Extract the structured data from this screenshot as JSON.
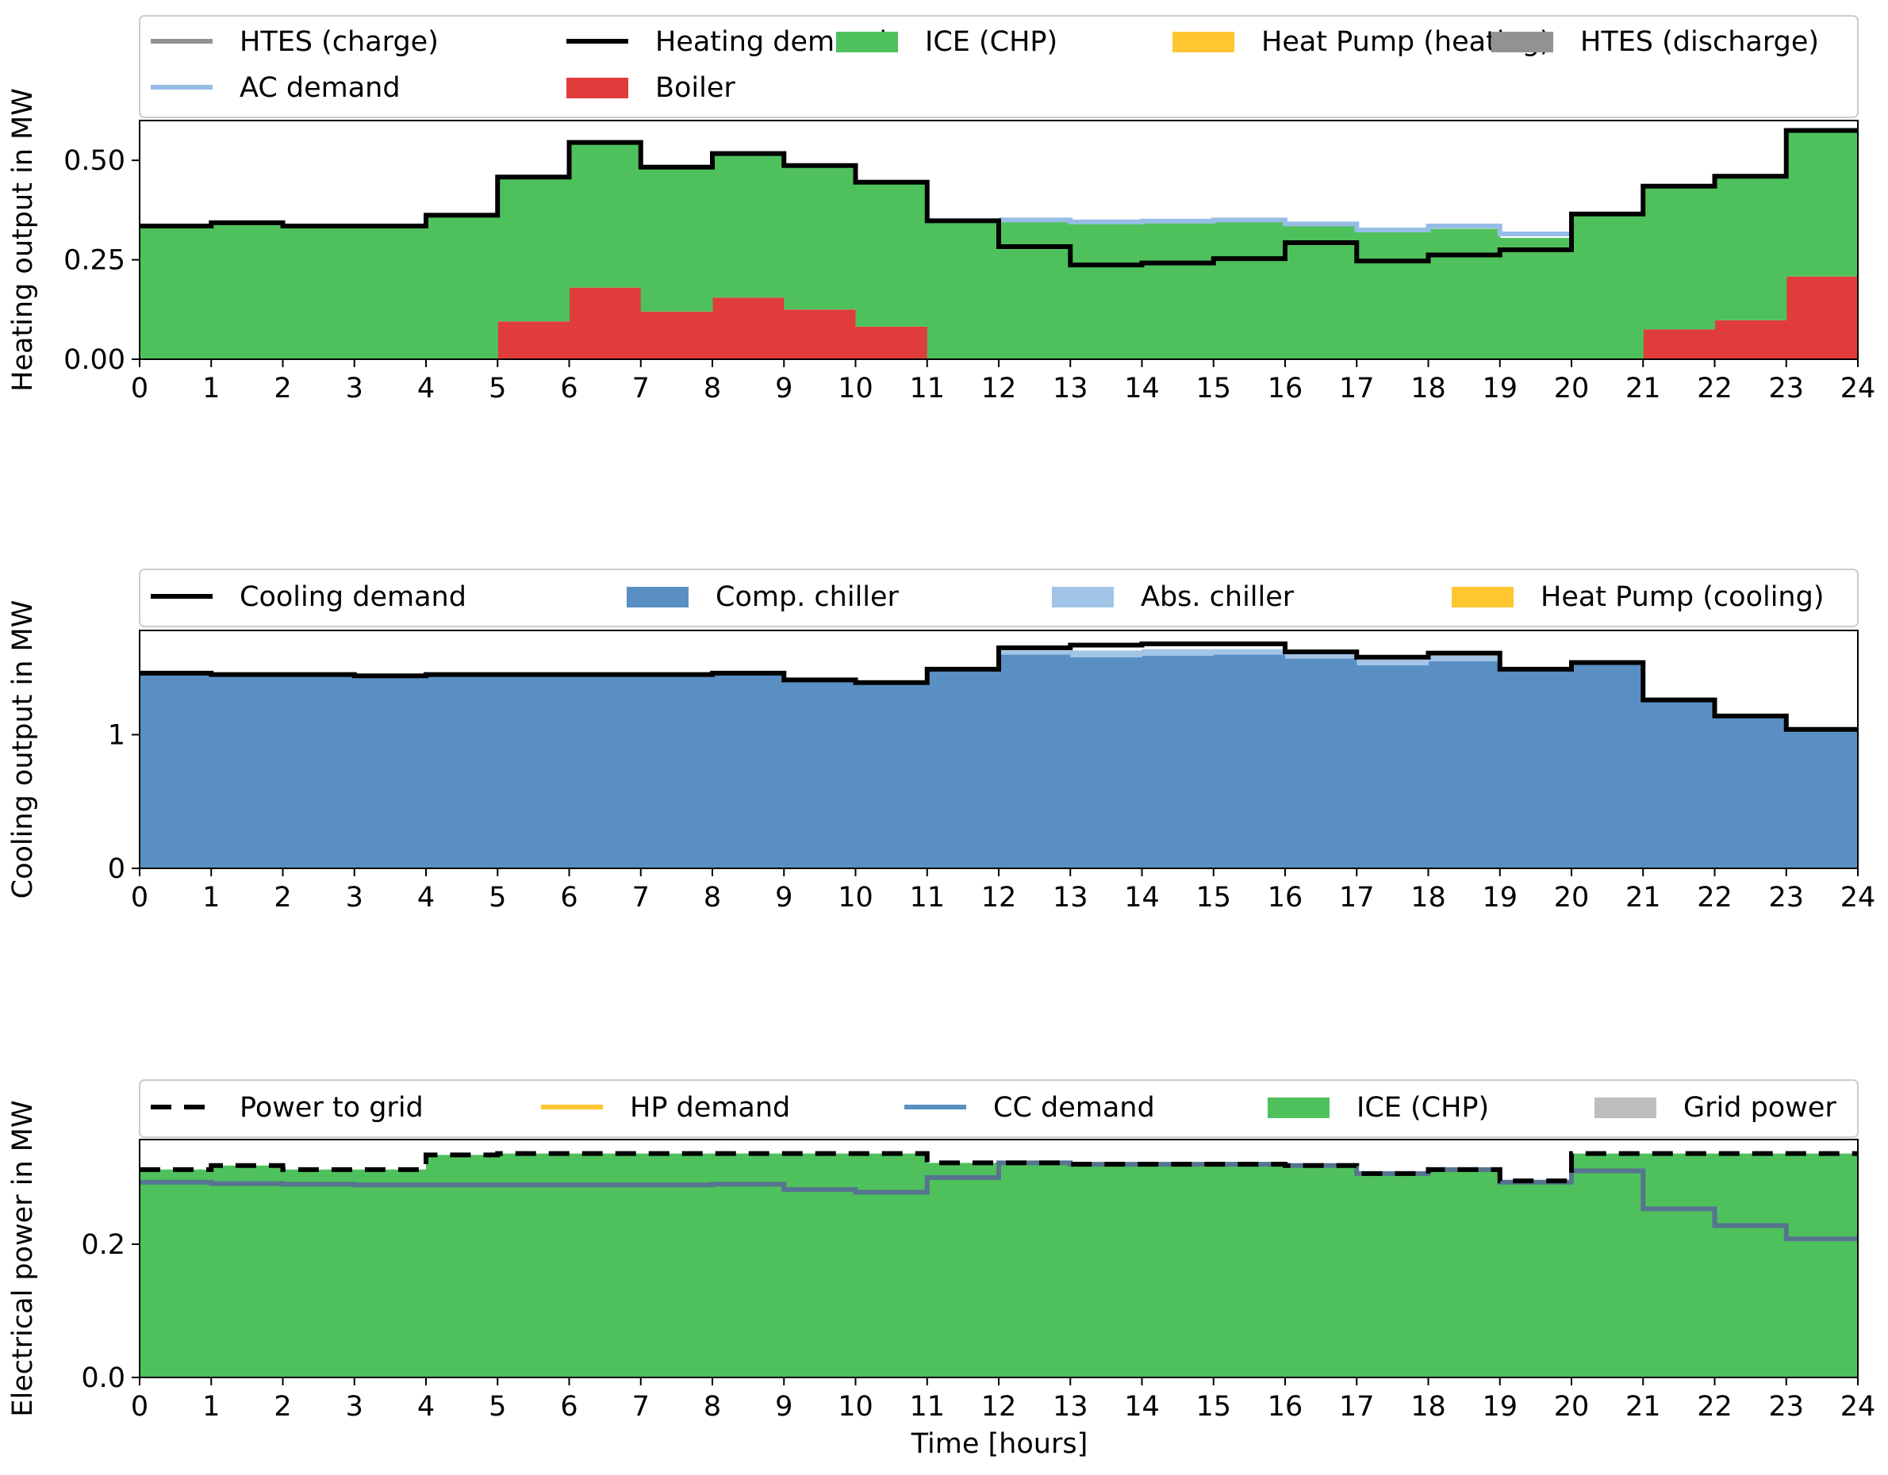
{
  "figure": {
    "xlabel": "Time [hours]"
  },
  "chart_data": [
    {
      "type": "area",
      "step": "post",
      "ylabel": "Heating output in MW",
      "xlim": [
        0,
        24
      ],
      "ylim": [
        0,
        0.6
      ],
      "x": [
        0,
        1,
        2,
        3,
        4,
        5,
        6,
        7,
        8,
        9,
        10,
        11,
        12,
        13,
        14,
        15,
        16,
        17,
        18,
        19,
        20,
        21,
        22,
        23,
        24
      ],
      "xticks": [
        0,
        1,
        2,
        3,
        4,
        5,
        6,
        7,
        8,
        9,
        10,
        11,
        12,
        13,
        14,
        15,
        16,
        17,
        18,
        19,
        20,
        21,
        22,
        23,
        24
      ],
      "yticks": [
        0,
        0.25,
        0.5
      ],
      "ytick_labels": [
        "0.00",
        "0.25",
        "0.50"
      ],
      "legend": {
        "placement": "top",
        "ncol": 5,
        "entries": [
          {
            "label": "HTES (charge)",
            "kind": "line",
            "color": "#929292"
          },
          {
            "label": "Heating demand",
            "kind": "line",
            "color": "#000000"
          },
          {
            "label": "ICE (CHP)",
            "kind": "patch",
            "color": "#4fc15c"
          },
          {
            "label": "Heat Pump (heating)",
            "kind": "patch",
            "color": "#ffc631"
          },
          {
            "label": "HTES (discharge)",
            "kind": "patch",
            "color": "#929292"
          },
          {
            "label": "AC demand",
            "kind": "line",
            "color": "#97bde6"
          },
          {
            "label": "Boiler",
            "kind": "patch",
            "color": "#e03c3c"
          }
        ]
      },
      "areas": [
        {
          "name": "Boiler",
          "color": "#e03c3c",
          "base": null,
          "values": [
            0,
            0,
            0,
            0,
            0,
            0.095,
            0.18,
            0.12,
            0.155,
            0.125,
            0.082,
            0,
            0,
            0,
            0,
            0,
            0,
            0,
            0,
            0,
            0,
            0.075,
            0.098,
            0.208
          ]
        },
        {
          "name": "ICE (CHP)",
          "color": "#4fc15c",
          "base": "Boiler",
          "values": [
            0.335,
            0.343,
            0.335,
            0.335,
            0.362,
            0.363,
            0.365,
            0.363,
            0.362,
            0.362,
            0.363,
            0.348,
            0.35,
            0.345,
            0.347,
            0.35,
            0.34,
            0.325,
            0.328,
            0.305,
            0.365,
            0.36,
            0.362,
            0.367
          ]
        }
      ],
      "lines": [
        {
          "name": "AC demand",
          "color": "#97bde6",
          "width": 6,
          "dash": null,
          "values": [
            null,
            null,
            null,
            null,
            null,
            null,
            null,
            null,
            null,
            null,
            null,
            null,
            0.35,
            0.345,
            0.347,
            0.35,
            0.34,
            0.325,
            0.335,
            0.315,
            null,
            null,
            null,
            null
          ]
        },
        {
          "name": "Heating demand",
          "color": "#000000",
          "width": 6,
          "dash": null,
          "values": [
            0.335,
            0.343,
            0.335,
            0.335,
            0.362,
            0.458,
            0.545,
            0.483,
            0.517,
            0.487,
            0.445,
            0.348,
            0.283,
            0.237,
            0.242,
            0.253,
            0.293,
            0.247,
            0.262,
            0.275,
            0.365,
            0.435,
            0.46,
            0.575
          ]
        }
      ]
    },
    {
      "type": "area",
      "step": "post",
      "ylabel": "Cooling output in MW",
      "xlim": [
        0,
        24
      ],
      "ylim": [
        0,
        1.78
      ],
      "x": [
        0,
        1,
        2,
        3,
        4,
        5,
        6,
        7,
        8,
        9,
        10,
        11,
        12,
        13,
        14,
        15,
        16,
        17,
        18,
        19,
        20,
        21,
        22,
        23,
        24
      ],
      "xticks": [
        0,
        1,
        2,
        3,
        4,
        5,
        6,
        7,
        8,
        9,
        10,
        11,
        12,
        13,
        14,
        15,
        16,
        17,
        18,
        19,
        20,
        21,
        22,
        23,
        24
      ],
      "yticks": [
        0,
        1
      ],
      "ytick_labels": [
        "0",
        "1"
      ],
      "legend": {
        "placement": "top",
        "ncol": 4,
        "entries": [
          {
            "label": "Cooling demand",
            "kind": "line",
            "color": "#000000"
          },
          {
            "label": "Comp. chiller",
            "kind": "patch",
            "color": "#5a8fc3"
          },
          {
            "label": "Abs. chiller",
            "kind": "patch",
            "color": "#a2c4e6"
          },
          {
            "label": "Heat Pump (cooling)",
            "kind": "patch",
            "color": "#ffc631"
          }
        ]
      },
      "areas": [
        {
          "name": "Comp. chiller",
          "color": "#5a8fc3",
          "base": null,
          "values": [
            1.46,
            1.45,
            1.45,
            1.44,
            1.45,
            1.45,
            1.45,
            1.45,
            1.46,
            1.41,
            1.39,
            1.49,
            1.6,
            1.58,
            1.59,
            1.6,
            1.57,
            1.52,
            1.55,
            1.49,
            1.54,
            1.26,
            1.14,
            1.04
          ]
        },
        {
          "name": "Abs. chiller",
          "color": "#a2c4e6",
          "base": "Comp. chiller",
          "values": [
            0,
            0,
            0,
            0,
            0,
            0,
            0,
            0,
            0,
            0,
            0,
            0,
            0.03,
            0.05,
            0.05,
            0.04,
            0.04,
            0.04,
            0.04,
            0,
            0,
            0,
            0,
            0
          ]
        }
      ],
      "lines": [
        {
          "name": "Cooling demand",
          "color": "#000000",
          "width": 6,
          "dash": null,
          "values": [
            1.46,
            1.45,
            1.45,
            1.44,
            1.45,
            1.45,
            1.45,
            1.45,
            1.46,
            1.41,
            1.39,
            1.49,
            1.65,
            1.67,
            1.68,
            1.68,
            1.62,
            1.58,
            1.61,
            1.49,
            1.54,
            1.26,
            1.14,
            1.04
          ]
        }
      ]
    },
    {
      "type": "area",
      "step": "post",
      "ylabel": "Electrical power in MW",
      "xlim": [
        0,
        24
      ],
      "ylim": [
        0,
        0.357
      ],
      "x": [
        0,
        1,
        2,
        3,
        4,
        5,
        6,
        7,
        8,
        9,
        10,
        11,
        12,
        13,
        14,
        15,
        16,
        17,
        18,
        19,
        20,
        21,
        22,
        23,
        24
      ],
      "xticks": [
        0,
        1,
        2,
        3,
        4,
        5,
        6,
        7,
        8,
        9,
        10,
        11,
        12,
        13,
        14,
        15,
        16,
        17,
        18,
        19,
        20,
        21,
        22,
        23,
        24
      ],
      "yticks": [
        0,
        0.2
      ],
      "ytick_labels": [
        "0.0",
        "0.2"
      ],
      "legend": {
        "placement": "top",
        "ncol": 5,
        "entries": [
          {
            "label": "Power to grid",
            "kind": "dashline",
            "color": "#000000"
          },
          {
            "label": "HP demand",
            "kind": "line",
            "color": "#ffc631"
          },
          {
            "label": "CC demand",
            "kind": "line",
            "color": "#5a8fc3"
          },
          {
            "label": "ICE (CHP)",
            "kind": "patch",
            "color": "#4fc15c"
          },
          {
            "label": "Grid power",
            "kind": "patch",
            "color": "#bdbdbd"
          }
        ]
      },
      "areas": [
        {
          "name": "ICE (CHP)",
          "color": "#4fc15c",
          "base": null,
          "values": [
            0.312,
            0.318,
            0.312,
            0.312,
            0.334,
            0.336,
            0.336,
            0.336,
            0.336,
            0.336,
            0.336,
            0.322,
            0.322,
            0.32,
            0.32,
            0.32,
            0.318,
            0.306,
            0.312,
            0.295,
            0.336,
            0.336,
            0.336,
            0.336
          ]
        }
      ],
      "lines": [
        {
          "name": "CC demand",
          "color": "#56748f",
          "width": 6,
          "dash": null,
          "values": [
            0.293,
            0.291,
            0.29,
            0.289,
            0.289,
            0.289,
            0.289,
            0.289,
            0.29,
            0.282,
            0.278,
            0.3,
            0.322,
            0.32,
            0.32,
            0.32,
            0.318,
            0.306,
            0.312,
            0.293,
            0.31,
            0.253,
            0.228,
            0.208
          ]
        },
        {
          "name": "Power to grid",
          "color": "#000000",
          "width": 6,
          "dash": "26,16",
          "values": [
            0.312,
            0.318,
            0.312,
            0.312,
            0.334,
            0.336,
            0.336,
            0.336,
            0.336,
            0.336,
            0.336,
            0.322,
            0.322,
            0.32,
            0.32,
            0.32,
            0.318,
            0.306,
            0.312,
            0.295,
            0.336,
            0.336,
            0.336,
            0.336
          ]
        }
      ]
    }
  ]
}
